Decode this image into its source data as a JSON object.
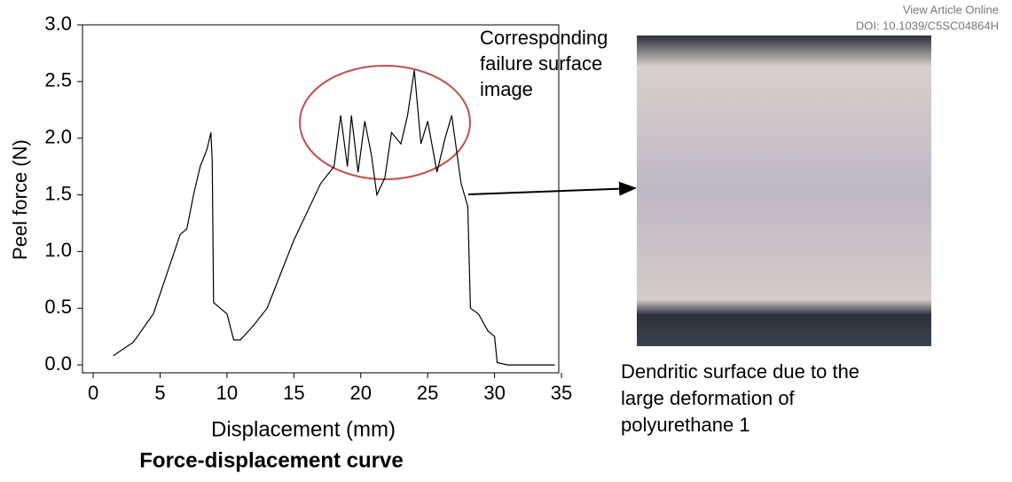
{
  "chart_data": {
    "type": "line",
    "title": "Force-displacement curve",
    "x_label": "Displacement (mm)",
    "y_label": "Peel force (N)",
    "x": [
      1.5,
      3,
      4.5,
      5.5,
      6.5,
      7,
      7.5,
      8,
      8.5,
      8.8,
      8.9,
      9,
      9.5,
      10,
      10.5,
      11,
      12,
      13,
      13.5,
      14,
      15,
      16,
      17,
      18,
      18.5,
      19,
      19.3,
      19.8,
      20.3,
      20.8,
      21.2,
      21.8,
      22.3,
      23,
      23.5,
      24,
      24.5,
      25,
      25.7,
      26.3,
      26.8,
      27.5,
      28,
      28.2,
      28.8,
      29.5,
      30,
      30.2,
      31,
      34.5
    ],
    "series": [
      {
        "name": "Peel force",
        "color": "#000000",
        "values": [
          0.08,
          0.2,
          0.45,
          0.8,
          1.15,
          1.2,
          1.5,
          1.75,
          1.9,
          2.05,
          1.8,
          0.55,
          0.5,
          0.45,
          0.22,
          0.22,
          0.35,
          0.5,
          0.65,
          0.8,
          1.1,
          1.35,
          1.6,
          1.75,
          2.2,
          1.75,
          2.2,
          1.7,
          2.15,
          1.85,
          1.5,
          1.65,
          2.05,
          1.95,
          2.2,
          2.6,
          1.95,
          2.15,
          1.7,
          2.0,
          2.2,
          1.6,
          1.4,
          0.5,
          0.45,
          0.3,
          0.25,
          0.02,
          0,
          0
        ]
      }
    ],
    "xlim": [
      -0.8,
      34.8
    ],
    "ylim": [
      -0.07,
      3.0
    ],
    "xticks": [
      0,
      5,
      10,
      15,
      20,
      25,
      30,
      35
    ],
    "yticks": [
      {
        "value": 0,
        "label": "0.0"
      },
      {
        "value": 0.5,
        "label": "0.5"
      },
      {
        "value": 1,
        "label": "1.0"
      },
      {
        "value": 1.5,
        "label": "1.5"
      },
      {
        "value": 2,
        "label": "2.0"
      },
      {
        "value": 2.5,
        "label": "2.5"
      },
      {
        "value": 3,
        "label": "3.0"
      }
    ],
    "annotations": {
      "image_caption": [
        "Corresponding",
        "failure surface",
        "image"
      ],
      "surface_note": [
        "Dendritic surface due to the",
        "large deformation of",
        "polyurethane 1"
      ],
      "view_online": "View Article Online",
      "doi": "DOI: 10.1039/C5SC04864H"
    }
  }
}
